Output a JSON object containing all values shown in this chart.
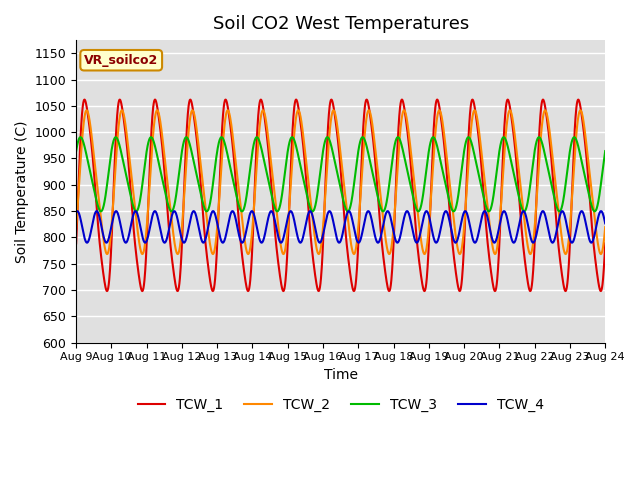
{
  "title": "Soil CO2 West Temperatures",
  "xlabel": "Time",
  "ylabel": "Soil Temperature (C)",
  "ylim": [
    600,
    1175
  ],
  "yticks": [
    600,
    650,
    700,
    750,
    800,
    850,
    900,
    950,
    1000,
    1050,
    1100,
    1150
  ],
  "x_start_day": 9,
  "x_end_day": 24,
  "xtick_days": [
    9,
    10,
    11,
    12,
    13,
    14,
    15,
    16,
    17,
    18,
    19,
    20,
    21,
    22,
    23,
    24
  ],
  "annotation_text": "VR_soilco2",
  "annotation_bg": "#ffffcc",
  "annotation_edge": "#cc8800",
  "bg_color": "#e0e0e0",
  "fig_bg": "#ffffff",
  "grid_color": "#ffffff",
  "tcw1_color": "#dd0000",
  "tcw2_color": "#ff8800",
  "tcw3_color": "#00bb00",
  "tcw4_color": "#0000cc",
  "legend_labels": [
    "TCW_1",
    "TCW_2",
    "TCW_3",
    "TCW_4"
  ],
  "num_points": 2000
}
